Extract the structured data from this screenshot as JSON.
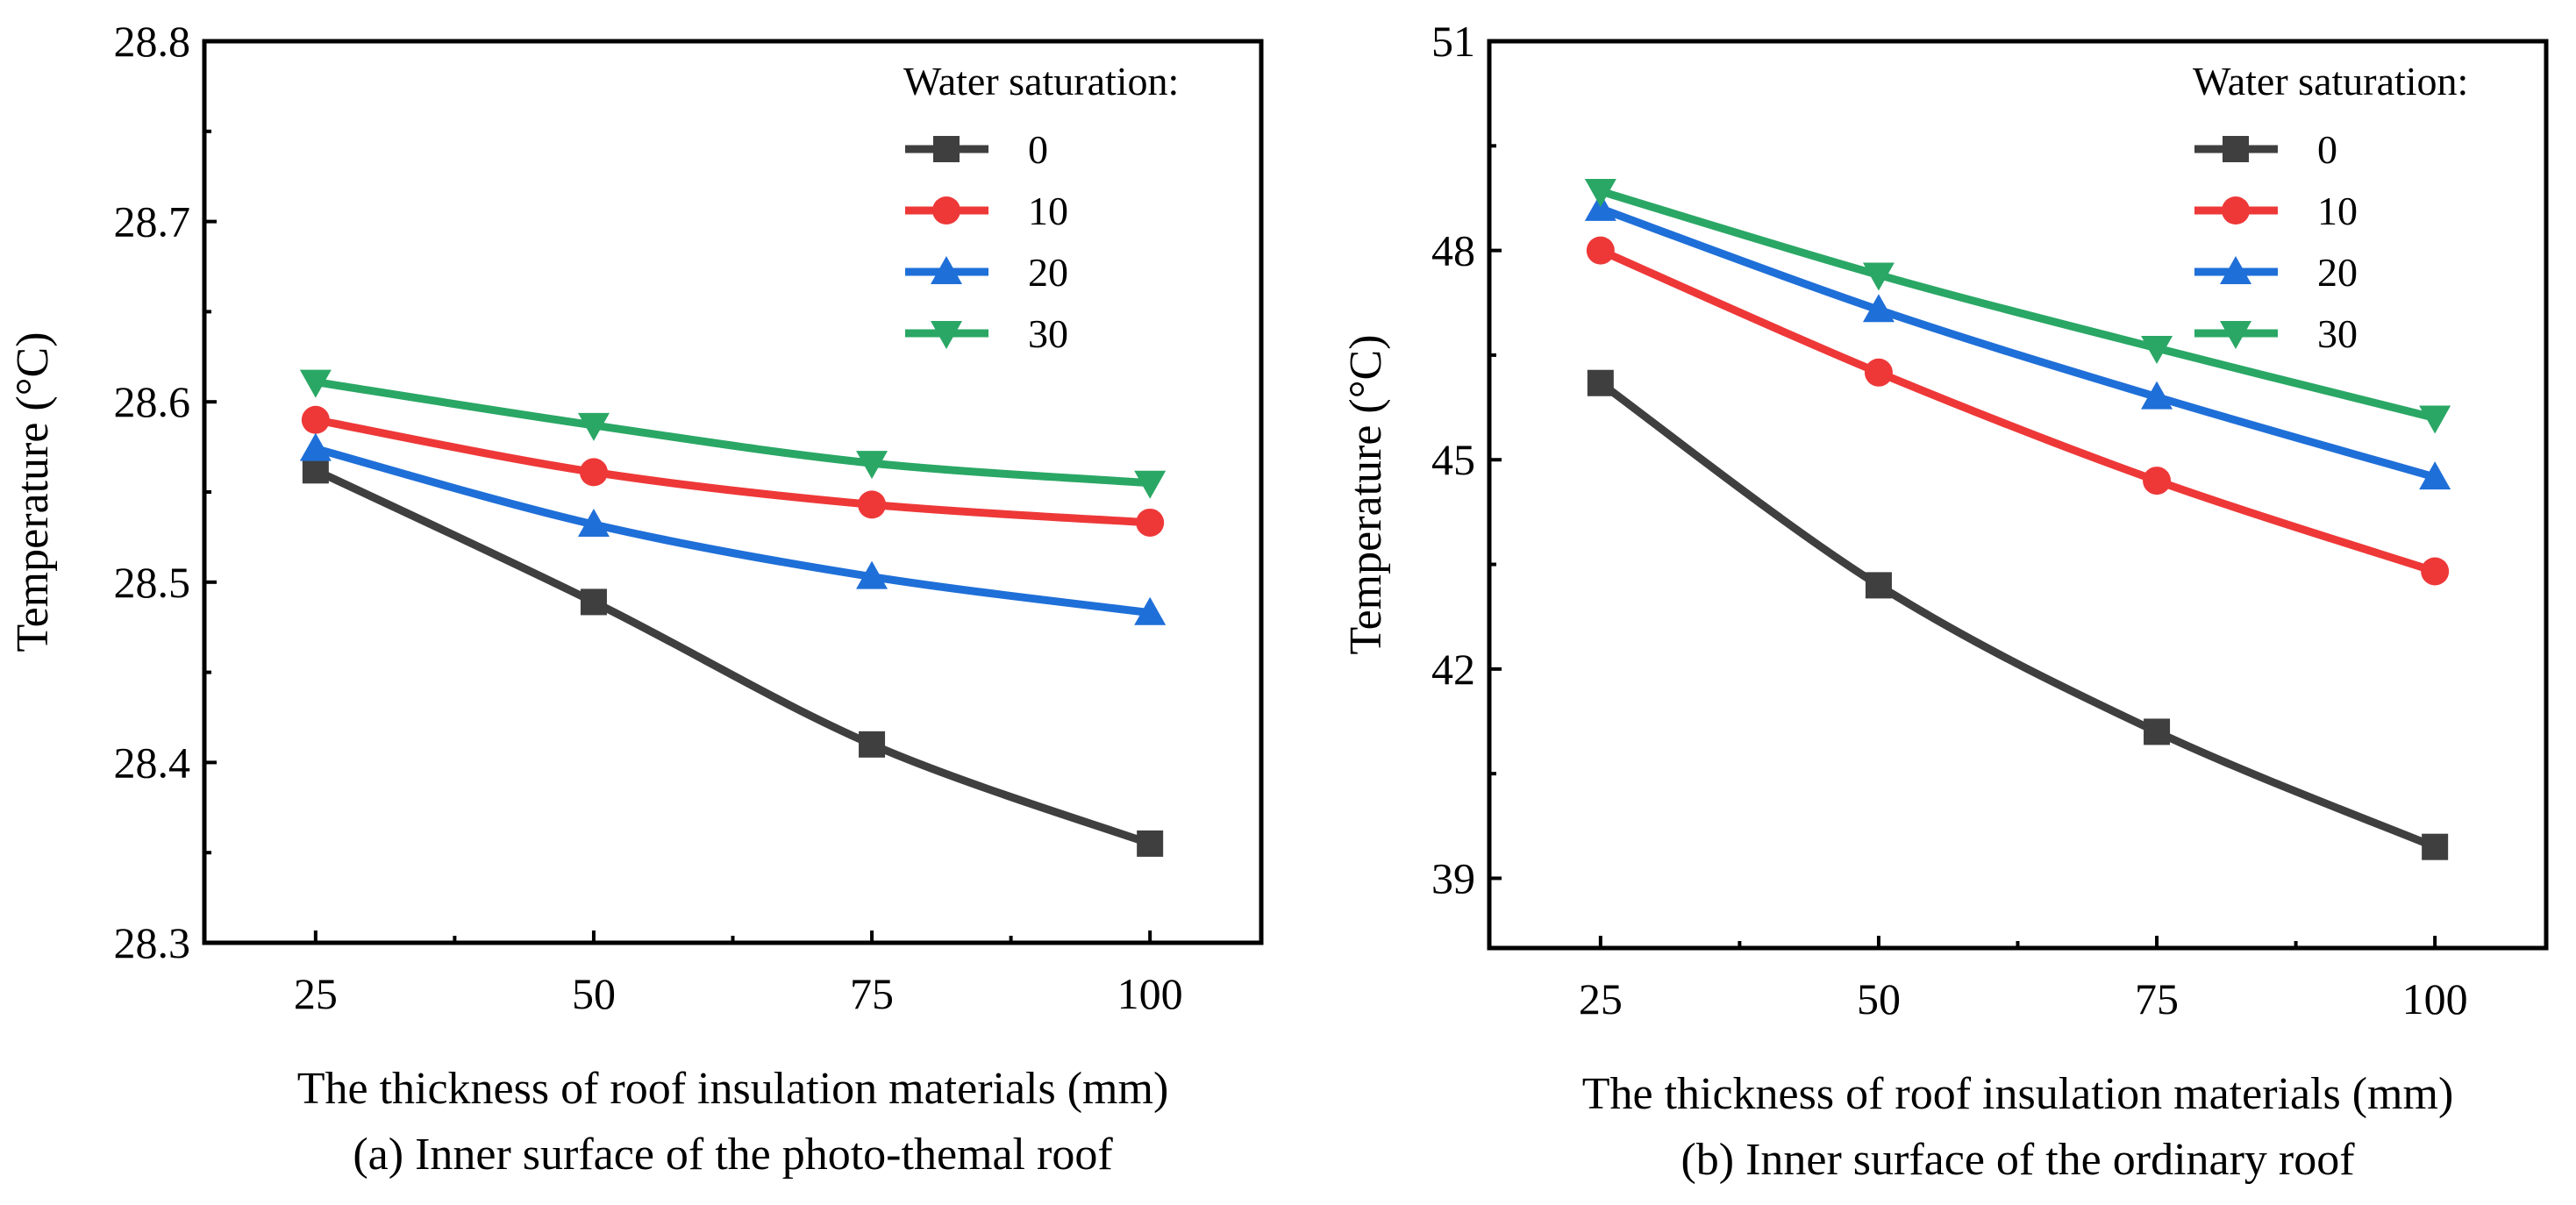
{
  "colors": {
    "series": [
      "#3f3f3f",
      "#ee3838",
      "#1f6fd8",
      "#2aa765"
    ],
    "axis": "#000000"
  },
  "chart_data": [
    {
      "type": "line",
      "caption": "(a) Inner surface of the photo-themal roof",
      "xlabel": "The thickness of roof insulation materials (mm)",
      "ylabel": "Temperature (°C)",
      "x": [
        25,
        50,
        75,
        100
      ],
      "xlim": [
        15,
        110
      ],
      "xticks": [
        25,
        50,
        75,
        100
      ],
      "ylim": [
        28.3,
        28.8
      ],
      "yticks": [
        28.3,
        28.4,
        28.5,
        28.6,
        28.7,
        28.8
      ],
      "ytick_labels": [
        "28.3",
        "28.4",
        "28.5",
        "28.6",
        "28.7",
        "28.8"
      ],
      "legend_title": "Water saturation:",
      "legend_position": "top-right",
      "series": [
        {
          "name": "0",
          "marker": "square",
          "values": [
            28.562,
            28.489,
            28.41,
            28.355
          ]
        },
        {
          "name": "10",
          "marker": "circle",
          "values": [
            28.59,
            28.561,
            28.543,
            28.533
          ]
        },
        {
          "name": "20",
          "marker": "triangle-up",
          "values": [
            28.574,
            28.532,
            28.503,
            28.483
          ]
        },
        {
          "name": "30",
          "marker": "triangle-down",
          "values": [
            28.611,
            28.587,
            28.566,
            28.555
          ]
        }
      ]
    },
    {
      "type": "line",
      "caption": "(b) Inner surface of the ordinary roof",
      "xlabel": "The thickness of roof insulation materials (mm)",
      "ylabel": "Temperature (°C)",
      "x": [
        25,
        50,
        75,
        100
      ],
      "xlim": [
        15,
        110
      ],
      "xticks": [
        25,
        50,
        75,
        100
      ],
      "ylim": [
        38,
        51
      ],
      "yticks": [
        39,
        42,
        45,
        48,
        51
      ],
      "ytick_labels": [
        "39",
        "42",
        "45",
        "48",
        "51"
      ],
      "legend_title": "Water saturation:",
      "legend_position": "top-right",
      "series": [
        {
          "name": "0",
          "marker": "square",
          "values": [
            46.1,
            43.2,
            41.1,
            39.45
          ]
        },
        {
          "name": "10",
          "marker": "circle",
          "values": [
            48.0,
            46.25,
            44.7,
            43.4
          ]
        },
        {
          "name": "20",
          "marker": "triangle-up",
          "values": [
            48.6,
            47.15,
            45.9,
            44.75
          ]
        },
        {
          "name": "30",
          "marker": "triangle-down",
          "values": [
            48.85,
            47.65,
            46.6,
            45.6
          ]
        }
      ]
    }
  ]
}
